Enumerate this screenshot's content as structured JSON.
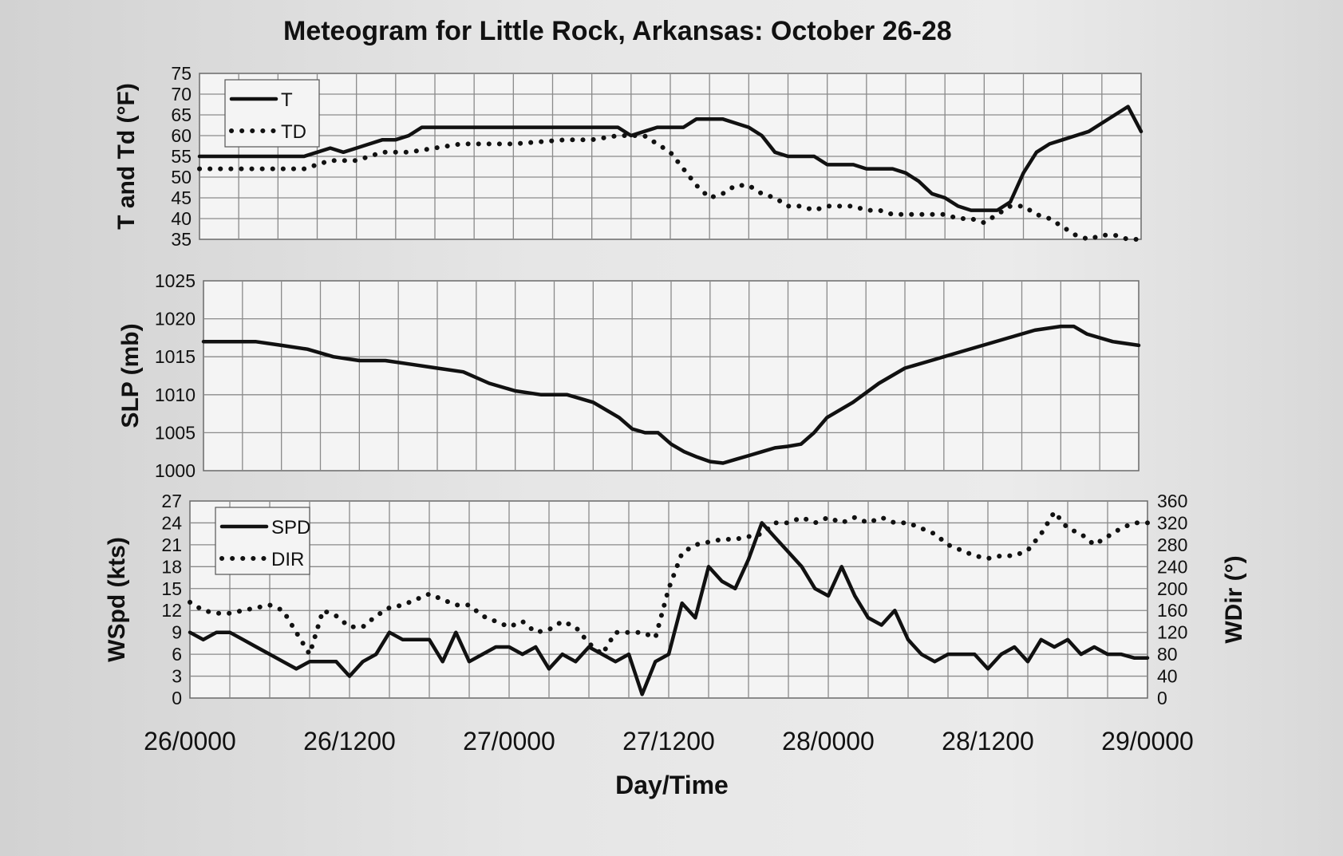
{
  "chart_data": {
    "type": "line",
    "title": "Meteogram for Little Rock, Arkansas: October 26-28",
    "xlabel": "Day/Time",
    "x_tick_labels": [
      "26/0000",
      "26/1200",
      "27/0000",
      "27/1200",
      "28/0000",
      "28/1200",
      "29/0000"
    ],
    "x_unit": "hours since 26/0000",
    "xlim": [
      0,
      72
    ],
    "panels": [
      {
        "id": "temperature",
        "ylabel": "T and Td (°F)",
        "ylim": [
          35,
          75
        ],
        "yticks": [
          75,
          70,
          65,
          60,
          55,
          50,
          45,
          40,
          35
        ],
        "legend": [
          "T",
          "TD"
        ],
        "legend_position": "top-left",
        "series": [
          {
            "name": "T",
            "style": "solid",
            "x": [
              0,
              4,
              8,
              9,
              10,
              11,
              12,
              13,
              14,
              15,
              16,
              17,
              18,
              20,
              24,
              28,
              30,
              32,
              33,
              34,
              35,
              36,
              37,
              38,
              39,
              40,
              41,
              42,
              43,
              44,
              45,
              46,
              47,
              48,
              49,
              50,
              51,
              52,
              53,
              54,
              55,
              56,
              57,
              58,
              59,
              60,
              61,
              62,
              63,
              64,
              65,
              66,
              67,
              68,
              69,
              70,
              71,
              72
            ],
            "y": [
              55,
              55,
              55,
              56,
              57,
              56,
              57,
              58,
              59,
              59,
              60,
              62,
              62,
              62,
              62,
              62,
              62,
              62,
              60,
              61,
              62,
              62,
              62,
              64,
              64,
              64,
              63,
              62,
              60,
              56,
              55,
              55,
              55,
              53,
              53,
              53,
              52,
              52,
              52,
              51,
              49,
              46,
              45,
              43,
              42,
              42,
              42,
              44,
              51,
              56,
              58,
              59,
              60,
              61,
              63,
              65,
              67,
              61
            ]
          },
          {
            "name": "TD",
            "style": "dotted",
            "x": [
              0,
              4,
              8,
              10,
              12,
              14,
              16,
              18,
              20,
              24,
              28,
              30,
              32,
              34,
              35,
              36,
              37,
              38,
              39,
              40,
              41,
              42,
              43,
              44,
              45,
              46,
              47,
              48,
              49,
              50,
              51,
              52,
              53,
              54,
              55,
              56,
              57,
              58,
              59,
              60,
              61,
              62,
              63,
              64,
              65,
              66,
              67,
              68,
              69,
              70,
              71,
              72
            ],
            "y": [
              52,
              52,
              52,
              54,
              54,
              56,
              56,
              57,
              58,
              58,
              59,
              59,
              60,
              60,
              58,
              56,
              52,
              48,
              45,
              46,
              48,
              48,
              46,
              45,
              43,
              43,
              42,
              43,
              43,
              43,
              42,
              42,
              41,
              41,
              41,
              41,
              41,
              40,
              40,
              39,
              41,
              43,
              43,
              41,
              40,
              38,
              36,
              35,
              36,
              36,
              35,
              35
            ]
          }
        ]
      },
      {
        "id": "pressure",
        "ylabel": "SLP (mb)",
        "ylim": [
          1000,
          1025
        ],
        "yticks": [
          1025,
          1020,
          1015,
          1010,
          1005,
          1000
        ],
        "series": [
          {
            "name": "SLP",
            "style": "solid",
            "x": [
              0,
              2,
              4,
              6,
              8,
              10,
              12,
              14,
              16,
              18,
              20,
              22,
              24,
              26,
              28,
              30,
              32,
              33,
              34,
              35,
              36,
              37,
              38,
              39,
              40,
              41,
              42,
              43,
              44,
              45,
              46,
              47,
              48,
              50,
              52,
              54,
              56,
              57,
              58,
              60,
              62,
              64,
              66,
              67,
              68,
              70,
              72
            ],
            "y": [
              1017,
              1017,
              1017,
              1016.5,
              1016,
              1015,
              1014.5,
              1014.5,
              1014,
              1013.5,
              1013,
              1011.5,
              1010.5,
              1010,
              1010,
              1009,
              1007,
              1005.5,
              1005,
              1005,
              1003.5,
              1002.5,
              1001.8,
              1001.2,
              1001,
              1001.5,
              1002,
              1002.5,
              1003,
              1003.2,
              1003.5,
              1005,
              1007,
              1009,
              1011.5,
              1013.5,
              1014.5,
              1015,
              1015.5,
              1016.5,
              1017.5,
              1018.5,
              1019,
              1019,
              1018,
              1017,
              1016.5
            ]
          }
        ]
      },
      {
        "id": "wind",
        "ylabel": "WSpd (kts)",
        "y2label": "WDir (°)",
        "ylim": [
          0,
          27
        ],
        "yticks": [
          27,
          24,
          21,
          18,
          15,
          12,
          9,
          6,
          3,
          0
        ],
        "y2lim": [
          0,
          360
        ],
        "y2ticks": [
          360,
          320,
          280,
          240,
          200,
          160,
          120,
          80,
          40,
          0
        ],
        "legend": [
          "SPD",
          "DIR"
        ],
        "legend_position": "top-left",
        "series": [
          {
            "name": "SPD",
            "axis": "left",
            "style": "solid",
            "x": [
              0,
              1,
              2,
              3,
              4,
              5,
              6,
              7,
              8,
              9,
              10,
              11,
              12,
              13,
              14,
              15,
              16,
              17,
              18,
              19,
              20,
              21,
              22,
              23,
              24,
              25,
              26,
              27,
              28,
              29,
              30,
              31,
              32,
              33,
              34,
              35,
              36,
              37,
              38,
              39,
              40,
              41,
              42,
              43,
              44,
              45,
              46,
              47,
              48,
              49,
              50,
              51,
              52,
              53,
              54,
              55,
              56,
              57,
              58,
              59,
              60,
              61,
              62,
              63,
              64,
              65,
              66,
              67,
              68,
              69,
              70,
              71,
              72
            ],
            "y": [
              9,
              8,
              9,
              9,
              8,
              7,
              6,
              5,
              4,
              5,
              5,
              5,
              3,
              5,
              6,
              9,
              8,
              8,
              8,
              5,
              9,
              5,
              6,
              7,
              7,
              6,
              7,
              4,
              6,
              5,
              7,
              6,
              5,
              6,
              0.5,
              5,
              6,
              13,
              11,
              18,
              16,
              15,
              19,
              24,
              22,
              20,
              18,
              15,
              14,
              18,
              14,
              11,
              10,
              12,
              8,
              6,
              5,
              6,
              6,
              6,
              4,
              6,
              7,
              5,
              8,
              7,
              8,
              6,
              7,
              6,
              6,
              5.5,
              5.5
            ]
          },
          {
            "name": "DIR",
            "axis": "right",
            "style": "dotted",
            "x": [
              0,
              1,
              2,
              3,
              4,
              5,
              6,
              7,
              8,
              9,
              10,
              11,
              12,
              13,
              14,
              15,
              16,
              17,
              18,
              19,
              20,
              21,
              22,
              23,
              24,
              25,
              26,
              27,
              28,
              29,
              30,
              31,
              32,
              33,
              34,
              35,
              36,
              37,
              38,
              39,
              40,
              41,
              42,
              43,
              44,
              45,
              46,
              47,
              48,
              49,
              50,
              51,
              52,
              53,
              54,
              55,
              56,
              57,
              58,
              59,
              60,
              61,
              62,
              63,
              64,
              65,
              66,
              67,
              68,
              69,
              70,
              71,
              72
            ],
            "y": [
              175,
              160,
              155,
              155,
              160,
              165,
              170,
              160,
              120,
              80,
              160,
              150,
              130,
              130,
              150,
              165,
              170,
              180,
              190,
              180,
              170,
              170,
              150,
              140,
              130,
              140,
              120,
              125,
              140,
              130,
              100,
              80,
              120,
              120,
              120,
              110,
              200,
              265,
              280,
              285,
              290,
              290,
              295,
              300,
              320,
              320,
              330,
              320,
              330,
              320,
              330,
              320,
              330,
              320,
              320,
              310,
              300,
              280,
              270,
              260,
              255,
              260,
              260,
              270,
              300,
              340,
              310,
              300,
              280,
              295,
              310,
              320,
              320
            ]
          }
        ]
      }
    ]
  }
}
